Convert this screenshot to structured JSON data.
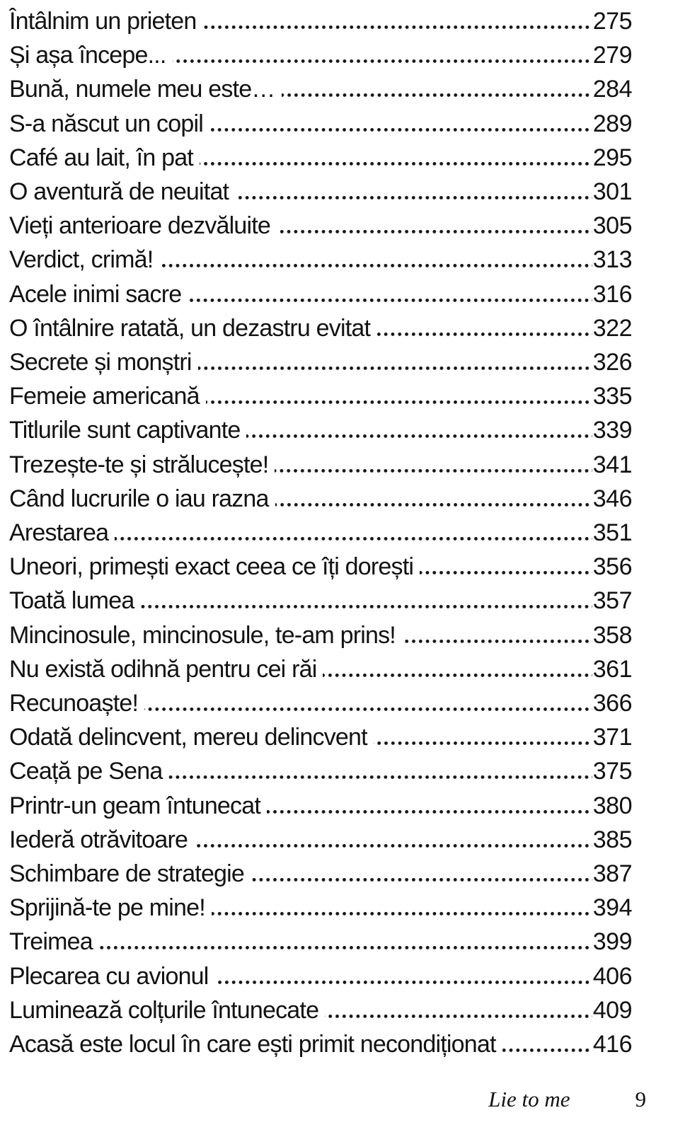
{
  "colors": {
    "text": "#121212",
    "background": "#ffffff"
  },
  "toc": {
    "entries": [
      {
        "title": "Întâlnim un prieten",
        "page": "275"
      },
      {
        "title": "Și așa începe...",
        "page": "279"
      },
      {
        "title": "Bună, numele meu este…",
        "page": "284"
      },
      {
        "title": "S-a născut un copil",
        "page": "289"
      },
      {
        "title": "Café au lait, în pat",
        "page": "295"
      },
      {
        "title": "O aventură de neuitat",
        "page": "301"
      },
      {
        "title": "Vieți anterioare dezvăluite",
        "page": "305"
      },
      {
        "title": "Verdict, crimă!",
        "page": "313"
      },
      {
        "title": "Acele inimi sacre",
        "page": "316"
      },
      {
        "title": "O întâlnire ratată, un dezastru evitat",
        "page": "322"
      },
      {
        "title": "Secrete și monștri",
        "page": "326"
      },
      {
        "title": "Femeie americană",
        "page": "335"
      },
      {
        "title": "Titlurile sunt captivante",
        "page": "339"
      },
      {
        "title": "Trezește-te și strălucește!",
        "page": "341"
      },
      {
        "title": "Când lucrurile o iau razna",
        "page": "346"
      },
      {
        "title": "Arestarea",
        "page": "351"
      },
      {
        "title": "Uneori, primești exact ceea ce îți dorești",
        "page": "356"
      },
      {
        "title": "Toată lumea",
        "page": "357"
      },
      {
        "title": "Mincinosule, mincinosule, te-am prins!",
        "page": "358"
      },
      {
        "title": "Nu există odihnă pentru cei răi",
        "page": "361"
      },
      {
        "title": "Recunoaște!",
        "page": "366"
      },
      {
        "title": "Odată delincvent, mereu delincvent",
        "page": "371"
      },
      {
        "title": "Ceață pe Sena",
        "page": "375"
      },
      {
        "title": "Printr-un geam întunecat",
        "page": "380"
      },
      {
        "title": "Iederă otrăvitoare",
        "page": "385"
      },
      {
        "title": "Schimbare de strategie",
        "page": "387"
      },
      {
        "title": "Sprijină-te pe mine!",
        "page": "394"
      },
      {
        "title": "Treimea",
        "page": "399"
      },
      {
        "title": "Plecarea cu avionul",
        "page": "406"
      },
      {
        "title": "Luminează colțurile întunecate",
        "page": "409"
      },
      {
        "title": "Acasă este locul în care ești primit necondiționat",
        "page": "416"
      }
    ]
  },
  "footer": {
    "book_title": "Lie to me",
    "page_number": "9"
  }
}
